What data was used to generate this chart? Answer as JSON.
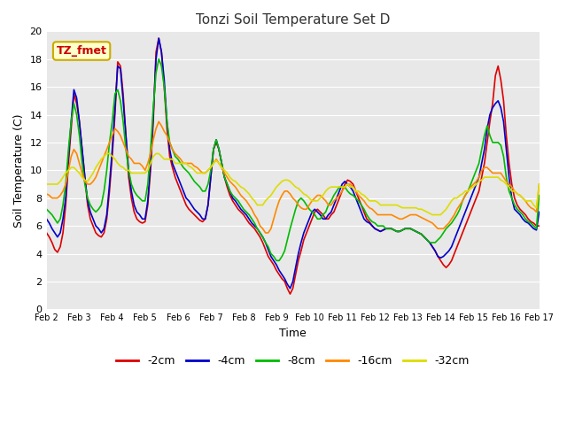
{
  "title": "Tonzi Soil Temperature Set D",
  "xlabel": "Time",
  "ylabel": "Soil Temperature (C)",
  "xlim": [
    0,
    15
  ],
  "ylim": [
    0,
    20
  ],
  "yticks": [
    0,
    2,
    4,
    6,
    8,
    10,
    12,
    14,
    16,
    18,
    20
  ],
  "xtick_labels": [
    "Feb 2",
    "Feb 3",
    "Feb 4",
    "Feb 5",
    "Feb 6",
    "Feb 7",
    "Feb 8",
    "Feb 9",
    "Feb 10",
    "Feb 11",
    "Feb 12",
    "Feb 13",
    "Feb 14",
    "Feb 15",
    "Feb 16",
    "Feb 17"
  ],
  "annotation_text": "TZ_fmet",
  "annotation_color": "#cc0000",
  "annotation_bg": "#ffffcc",
  "annotation_border": "#ccaa00",
  "fig_bg_color": "#ffffff",
  "plot_bg": "#e8e8e8",
  "grid_color": "#ffffff",
  "series": {
    "-2cm": {
      "color": "#dd0000",
      "lw": 1.2
    },
    "-4cm": {
      "color": "#0000cc",
      "lw": 1.2
    },
    "-8cm": {
      "color": "#00bb00",
      "lw": 1.2
    },
    "-16cm": {
      "color": "#ff8800",
      "lw": 1.2
    },
    "-32cm": {
      "color": "#dddd00",
      "lw": 1.2
    }
  },
  "data": {
    "x": [
      0.0,
      0.083,
      0.167,
      0.25,
      0.333,
      0.417,
      0.5,
      0.583,
      0.667,
      0.75,
      0.833,
      0.917,
      1.0,
      1.083,
      1.167,
      1.25,
      1.333,
      1.417,
      1.5,
      1.583,
      1.667,
      1.75,
      1.833,
      1.917,
      2.0,
      2.083,
      2.167,
      2.25,
      2.333,
      2.417,
      2.5,
      2.583,
      2.667,
      2.75,
      2.833,
      2.917,
      3.0,
      3.083,
      3.167,
      3.25,
      3.333,
      3.417,
      3.5,
      3.583,
      3.667,
      3.75,
      3.833,
      3.917,
      4.0,
      4.083,
      4.167,
      4.25,
      4.333,
      4.417,
      4.5,
      4.583,
      4.667,
      4.75,
      4.833,
      4.917,
      5.0,
      5.083,
      5.167,
      5.25,
      5.333,
      5.417,
      5.5,
      5.583,
      5.667,
      5.75,
      5.833,
      5.917,
      6.0,
      6.083,
      6.167,
      6.25,
      6.333,
      6.417,
      6.5,
      6.583,
      6.667,
      6.75,
      6.833,
      6.917,
      7.0,
      7.083,
      7.167,
      7.25,
      7.333,
      7.417,
      7.5,
      7.583,
      7.667,
      7.75,
      7.833,
      7.917,
      8.0,
      8.083,
      8.167,
      8.25,
      8.333,
      8.417,
      8.5,
      8.583,
      8.667,
      8.75,
      8.833,
      8.917,
      9.0,
      9.083,
      9.167,
      9.25,
      9.333,
      9.417,
      9.5,
      9.583,
      9.667,
      9.75,
      9.833,
      9.917,
      10.0,
      10.083,
      10.167,
      10.25,
      10.333,
      10.417,
      10.5,
      10.583,
      10.667,
      10.75,
      10.833,
      10.917,
      11.0,
      11.083,
      11.167,
      11.25,
      11.333,
      11.417,
      11.5,
      11.583,
      11.667,
      11.75,
      11.833,
      11.917,
      12.0,
      12.083,
      12.167,
      12.25,
      12.333,
      12.417,
      12.5,
      12.583,
      12.667,
      12.75,
      12.833,
      12.917,
      13.0,
      13.083,
      13.167,
      13.25,
      13.333,
      13.417,
      13.5,
      13.583,
      13.667,
      13.75,
      13.833,
      13.917,
      14.0,
      14.083,
      14.167,
      14.25,
      14.333,
      14.417,
      14.5,
      14.583,
      14.667,
      14.75,
      14.833,
      14.917,
      15.0
    ],
    "neg2cm": [
      5.5,
      5.2,
      4.8,
      4.3,
      4.1,
      4.5,
      5.5,
      7.5,
      10.5,
      13.0,
      15.5,
      14.8,
      13.5,
      11.5,
      9.5,
      7.5,
      6.5,
      6.0,
      5.5,
      5.3,
      5.2,
      5.5,
      6.5,
      8.5,
      11.0,
      14.0,
      17.8,
      17.5,
      15.5,
      12.5,
      9.5,
      8.0,
      7.0,
      6.5,
      6.3,
      6.2,
      6.3,
      7.5,
      10.0,
      13.5,
      18.5,
      19.5,
      18.5,
      16.0,
      13.0,
      11.0,
      10.2,
      9.5,
      9.0,
      8.5,
      8.0,
      7.5,
      7.2,
      7.0,
      6.8,
      6.6,
      6.4,
      6.3,
      6.5,
      7.5,
      9.5,
      11.5,
      12.0,
      11.5,
      10.5,
      9.5,
      8.8,
      8.2,
      7.8,
      7.5,
      7.2,
      7.0,
      6.8,
      6.5,
      6.2,
      6.0,
      5.8,
      5.5,
      5.2,
      4.8,
      4.3,
      3.8,
      3.5,
      3.2,
      2.8,
      2.5,
      2.2,
      2.0,
      1.5,
      1.1,
      1.5,
      2.5,
      3.5,
      4.2,
      5.0,
      5.5,
      6.0,
      6.5,
      7.0,
      7.2,
      7.0,
      6.8,
      6.5,
      6.5,
      6.8,
      7.0,
      7.5,
      8.0,
      8.5,
      9.0,
      9.3,
      9.2,
      9.0,
      8.5,
      8.0,
      7.5,
      7.0,
      6.5,
      6.3,
      6.0,
      5.8,
      5.7,
      5.6,
      5.7,
      5.8,
      5.8,
      5.8,
      5.7,
      5.6,
      5.6,
      5.7,
      5.8,
      5.8,
      5.8,
      5.7,
      5.6,
      5.5,
      5.4,
      5.2,
      5.0,
      4.8,
      4.5,
      4.2,
      3.8,
      3.5,
      3.2,
      3.0,
      3.2,
      3.5,
      4.0,
      4.5,
      5.0,
      5.5,
      6.0,
      6.5,
      7.0,
      7.5,
      8.0,
      8.5,
      9.5,
      10.5,
      12.0,
      13.5,
      14.8,
      16.8,
      17.5,
      16.5,
      15.0,
      12.5,
      10.5,
      9.0,
      8.0,
      7.5,
      7.2,
      7.0,
      6.8,
      6.5,
      6.3,
      6.2,
      6.0,
      6.0
    ],
    "neg4cm": [
      6.5,
      6.2,
      5.8,
      5.5,
      5.2,
      5.5,
      6.5,
      8.0,
      11.0,
      13.5,
      15.8,
      15.2,
      13.5,
      11.5,
      9.5,
      7.8,
      7.0,
      6.5,
      6.0,
      5.8,
      5.5,
      5.8,
      6.8,
      9.0,
      11.5,
      14.5,
      17.5,
      17.3,
      15.0,
      12.5,
      10.0,
      8.5,
      7.5,
      7.0,
      6.8,
      6.5,
      6.5,
      7.8,
      10.5,
      14.0,
      18.0,
      19.5,
      18.5,
      16.5,
      13.5,
      11.5,
      10.5,
      10.0,
      9.5,
      9.0,
      8.5,
      8.0,
      7.8,
      7.5,
      7.2,
      7.0,
      6.8,
      6.5,
      6.5,
      7.5,
      9.5,
      11.5,
      12.2,
      11.5,
      10.5,
      9.5,
      9.0,
      8.5,
      8.0,
      7.8,
      7.5,
      7.2,
      7.0,
      6.8,
      6.5,
      6.2,
      6.0,
      5.8,
      5.5,
      5.2,
      4.8,
      4.3,
      3.8,
      3.5,
      3.2,
      2.8,
      2.5,
      2.2,
      1.8,
      1.5,
      2.0,
      3.0,
      4.0,
      4.8,
      5.5,
      6.0,
      6.5,
      7.0,
      7.2,
      7.0,
      6.8,
      6.5,
      6.5,
      6.8,
      7.0,
      7.5,
      8.0,
      8.5,
      9.0,
      9.2,
      9.0,
      8.8,
      8.5,
      8.0,
      7.5,
      7.0,
      6.5,
      6.3,
      6.2,
      6.0,
      5.8,
      5.7,
      5.6,
      5.7,
      5.8,
      5.8,
      5.8,
      5.7,
      5.6,
      5.6,
      5.7,
      5.8,
      5.8,
      5.8,
      5.7,
      5.6,
      5.5,
      5.4,
      5.2,
      5.0,
      4.8,
      4.5,
      4.2,
      3.8,
      3.7,
      3.8,
      4.0,
      4.2,
      4.5,
      5.0,
      5.5,
      6.0,
      6.5,
      7.0,
      7.5,
      8.0,
      8.5,
      9.0,
      9.5,
      10.5,
      11.5,
      13.0,
      14.0,
      14.5,
      14.8,
      15.0,
      14.5,
      13.5,
      11.5,
      9.5,
      8.0,
      7.2,
      7.0,
      6.8,
      6.5,
      6.3,
      6.2,
      6.0,
      5.8,
      5.7,
      7.0
    ],
    "neg8cm": [
      7.2,
      7.0,
      6.8,
      6.5,
      6.2,
      6.5,
      7.5,
      9.0,
      11.5,
      13.5,
      14.8,
      14.0,
      12.5,
      10.5,
      9.0,
      8.0,
      7.5,
      7.2,
      7.0,
      7.2,
      7.5,
      8.5,
      10.0,
      12.0,
      13.5,
      15.5,
      15.8,
      15.0,
      13.5,
      11.5,
      10.0,
      9.0,
      8.5,
      8.2,
      8.0,
      7.8,
      7.8,
      9.0,
      11.5,
      14.5,
      17.0,
      18.0,
      17.5,
      16.0,
      13.5,
      12.0,
      11.5,
      11.0,
      10.8,
      10.5,
      10.2,
      10.0,
      9.8,
      9.5,
      9.2,
      9.0,
      8.8,
      8.5,
      8.5,
      9.0,
      10.0,
      11.5,
      12.2,
      11.5,
      10.5,
      9.5,
      9.0,
      8.5,
      8.2,
      8.0,
      7.8,
      7.5,
      7.2,
      7.0,
      6.8,
      6.5,
      6.2,
      5.8,
      5.5,
      5.2,
      4.8,
      4.5,
      4.0,
      3.8,
      3.5,
      3.5,
      3.8,
      4.2,
      5.0,
      5.8,
      6.5,
      7.2,
      7.8,
      8.0,
      7.8,
      7.5,
      7.2,
      7.0,
      6.8,
      6.5,
      6.5,
      6.8,
      7.0,
      7.5,
      7.8,
      8.2,
      8.5,
      8.8,
      8.8,
      8.8,
      8.5,
      8.3,
      8.2,
      8.0,
      7.8,
      7.5,
      7.2,
      6.8,
      6.5,
      6.3,
      6.2,
      6.0,
      6.0,
      6.0,
      5.8,
      5.8,
      5.8,
      5.7,
      5.6,
      5.6,
      5.7,
      5.8,
      5.8,
      5.8,
      5.7,
      5.6,
      5.5,
      5.4,
      5.2,
      5.0,
      4.8,
      4.8,
      4.8,
      5.0,
      5.2,
      5.5,
      5.8,
      6.0,
      6.2,
      6.5,
      6.8,
      7.2,
      7.8,
      8.2,
      8.5,
      9.0,
      9.5,
      10.0,
      10.5,
      11.5,
      12.5,
      13.2,
      12.5,
      12.0,
      12.0,
      12.0,
      11.8,
      11.0,
      9.5,
      8.5,
      8.0,
      7.5,
      7.2,
      7.0,
      6.8,
      6.5,
      6.3,
      6.2,
      6.0,
      5.8,
      8.2
    ],
    "neg16cm": [
      8.3,
      8.2,
      8.0,
      8.0,
      8.0,
      8.2,
      8.5,
      9.0,
      10.0,
      11.0,
      11.5,
      11.2,
      10.5,
      9.8,
      9.2,
      9.0,
      9.0,
      9.2,
      9.5,
      10.0,
      10.5,
      11.0,
      11.5,
      12.0,
      12.5,
      13.0,
      12.8,
      12.5,
      12.0,
      11.5,
      11.0,
      10.8,
      10.5,
      10.5,
      10.5,
      10.3,
      10.0,
      10.5,
      11.2,
      12.2,
      13.0,
      13.5,
      13.2,
      12.8,
      12.5,
      12.0,
      11.5,
      11.2,
      11.0,
      10.8,
      10.5,
      10.5,
      10.5,
      10.5,
      10.3,
      10.2,
      10.0,
      9.8,
      9.8,
      10.0,
      10.2,
      10.5,
      10.8,
      10.5,
      10.2,
      9.8,
      9.5,
      9.2,
      9.0,
      8.8,
      8.5,
      8.2,
      8.0,
      7.8,
      7.5,
      7.2,
      6.8,
      6.5,
      6.0,
      5.8,
      5.5,
      5.5,
      5.8,
      6.5,
      7.2,
      7.8,
      8.2,
      8.5,
      8.5,
      8.3,
      8.0,
      7.8,
      7.5,
      7.3,
      7.2,
      7.2,
      7.5,
      7.8,
      8.0,
      8.2,
      8.2,
      8.0,
      7.8,
      7.5,
      7.5,
      7.8,
      8.0,
      8.2,
      8.5,
      8.8,
      9.0,
      9.0,
      8.8,
      8.5,
      8.2,
      8.0,
      7.8,
      7.5,
      7.3,
      7.2,
      7.0,
      6.8,
      6.8,
      6.8,
      6.8,
      6.8,
      6.8,
      6.7,
      6.6,
      6.5,
      6.5,
      6.6,
      6.7,
      6.8,
      6.8,
      6.8,
      6.7,
      6.6,
      6.5,
      6.4,
      6.3,
      6.2,
      6.0,
      5.8,
      5.8,
      5.8,
      6.0,
      6.2,
      6.5,
      6.8,
      7.2,
      7.5,
      7.8,
      8.2,
      8.5,
      8.8,
      9.0,
      9.2,
      9.5,
      10.0,
      10.2,
      10.2,
      10.0,
      9.8,
      9.8,
      9.8,
      9.8,
      9.5,
      9.2,
      9.0,
      8.8,
      8.5,
      8.3,
      8.2,
      8.0,
      7.8,
      7.5,
      7.3,
      7.2,
      7.0,
      9.0
    ],
    "neg32cm": [
      9.0,
      9.0,
      9.0,
      9.0,
      9.0,
      9.2,
      9.5,
      9.8,
      10.0,
      10.2,
      10.2,
      10.0,
      9.8,
      9.5,
      9.3,
      9.2,
      9.5,
      9.8,
      10.2,
      10.5,
      10.8,
      11.0,
      11.2,
      11.2,
      11.0,
      10.8,
      10.5,
      10.3,
      10.2,
      10.0,
      10.0,
      9.8,
      9.8,
      9.8,
      9.8,
      9.8,
      9.8,
      10.0,
      10.5,
      11.0,
      11.2,
      11.2,
      11.0,
      10.8,
      10.8,
      10.8,
      10.8,
      10.5,
      10.5,
      10.5,
      10.5,
      10.5,
      10.3,
      10.2,
      10.0,
      9.8,
      9.8,
      9.8,
      9.8,
      10.0,
      10.2,
      10.5,
      10.7,
      10.5,
      10.2,
      10.0,
      9.8,
      9.5,
      9.3,
      9.2,
      9.0,
      8.8,
      8.7,
      8.5,
      8.3,
      8.0,
      7.8,
      7.5,
      7.5,
      7.5,
      7.8,
      8.0,
      8.2,
      8.5,
      8.8,
      9.0,
      9.2,
      9.3,
      9.3,
      9.2,
      9.0,
      8.8,
      8.7,
      8.5,
      8.3,
      8.2,
      8.0,
      7.8,
      7.8,
      7.8,
      8.0,
      8.2,
      8.5,
      8.7,
      8.8,
      8.8,
      8.8,
      8.8,
      8.8,
      8.8,
      9.0,
      8.8,
      8.8,
      8.5,
      8.5,
      8.3,
      8.2,
      8.0,
      7.8,
      7.8,
      7.8,
      7.7,
      7.5,
      7.5,
      7.5,
      7.5,
      7.5,
      7.5,
      7.5,
      7.4,
      7.3,
      7.3,
      7.3,
      7.3,
      7.3,
      7.3,
      7.2,
      7.2,
      7.1,
      7.0,
      6.9,
      6.8,
      6.8,
      6.8,
      6.8,
      7.0,
      7.2,
      7.5,
      7.8,
      8.0,
      8.0,
      8.2,
      8.3,
      8.5,
      8.5,
      8.7,
      8.8,
      9.0,
      9.2,
      9.3,
      9.5,
      9.5,
      9.5,
      9.5,
      9.5,
      9.5,
      9.3,
      9.2,
      9.0,
      8.8,
      8.5,
      8.5,
      8.3,
      8.2,
      8.0,
      7.8,
      7.8,
      7.8,
      7.5,
      7.3,
      9.0
    ]
  }
}
